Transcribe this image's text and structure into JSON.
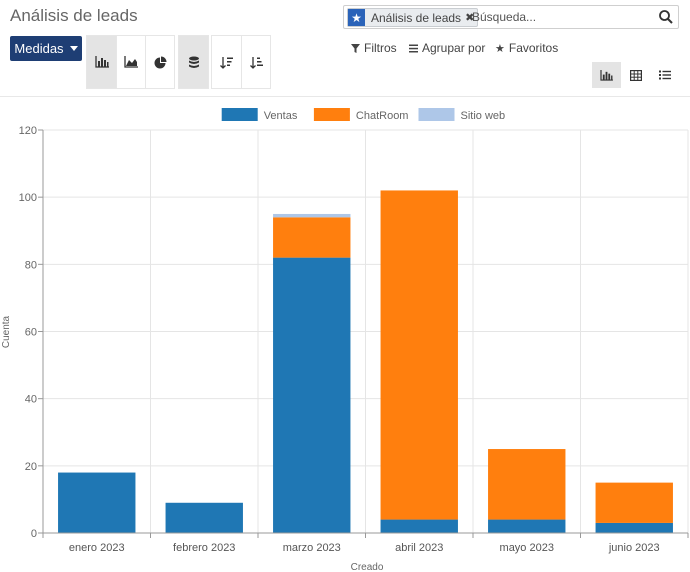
{
  "header": {
    "title": "Análisis de leads"
  },
  "search": {
    "facet_label": "Análisis de leads",
    "facet_icon": "star-icon",
    "placeholder": "Búsqueda..."
  },
  "toolbar": {
    "measures_label": "Medidas",
    "chart_type_buttons": [
      "bar-chart-icon",
      "line-chart-icon",
      "pie-chart-icon"
    ],
    "stacked_icon": "database-icon",
    "sort_buttons": [
      "sort-descending-icon",
      "sort-ascending-icon"
    ]
  },
  "filters": {
    "filters_label": "Filtros",
    "group_by_label": "Agrupar por",
    "favorites_label": "Favoritos"
  },
  "views": [
    "graph-view-icon",
    "pivot-view-icon",
    "list-view-icon"
  ],
  "colors": {
    "ventas": "#1f77b4",
    "chatroom": "#ff7f0e",
    "sitio_web": "#aec7e8",
    "primary": "#1e3e74"
  },
  "chart_data": {
    "type": "bar",
    "stacked": true,
    "categories": [
      "enero 2023",
      "febrero 2023",
      "marzo 2023",
      "abril 2023",
      "mayo 2023",
      "junio 2023"
    ],
    "series": [
      {
        "name": "Ventas",
        "color": "#1f77b4",
        "values": [
          18,
          9,
          82,
          4,
          4,
          3
        ]
      },
      {
        "name": "ChatRoom",
        "color": "#ff7f0e",
        "values": [
          0,
          0,
          12,
          98,
          21,
          12
        ]
      },
      {
        "name": "Sitio web",
        "color": "#aec7e8",
        "values": [
          0,
          0,
          1,
          0,
          0,
          0
        ]
      }
    ],
    "xlabel": "Creado",
    "ylabel": "Cuenta",
    "ylim": [
      0,
      120
    ],
    "yticks": [
      0,
      20,
      40,
      60,
      80,
      100,
      120
    ],
    "grid": true,
    "legend": "top-center"
  }
}
